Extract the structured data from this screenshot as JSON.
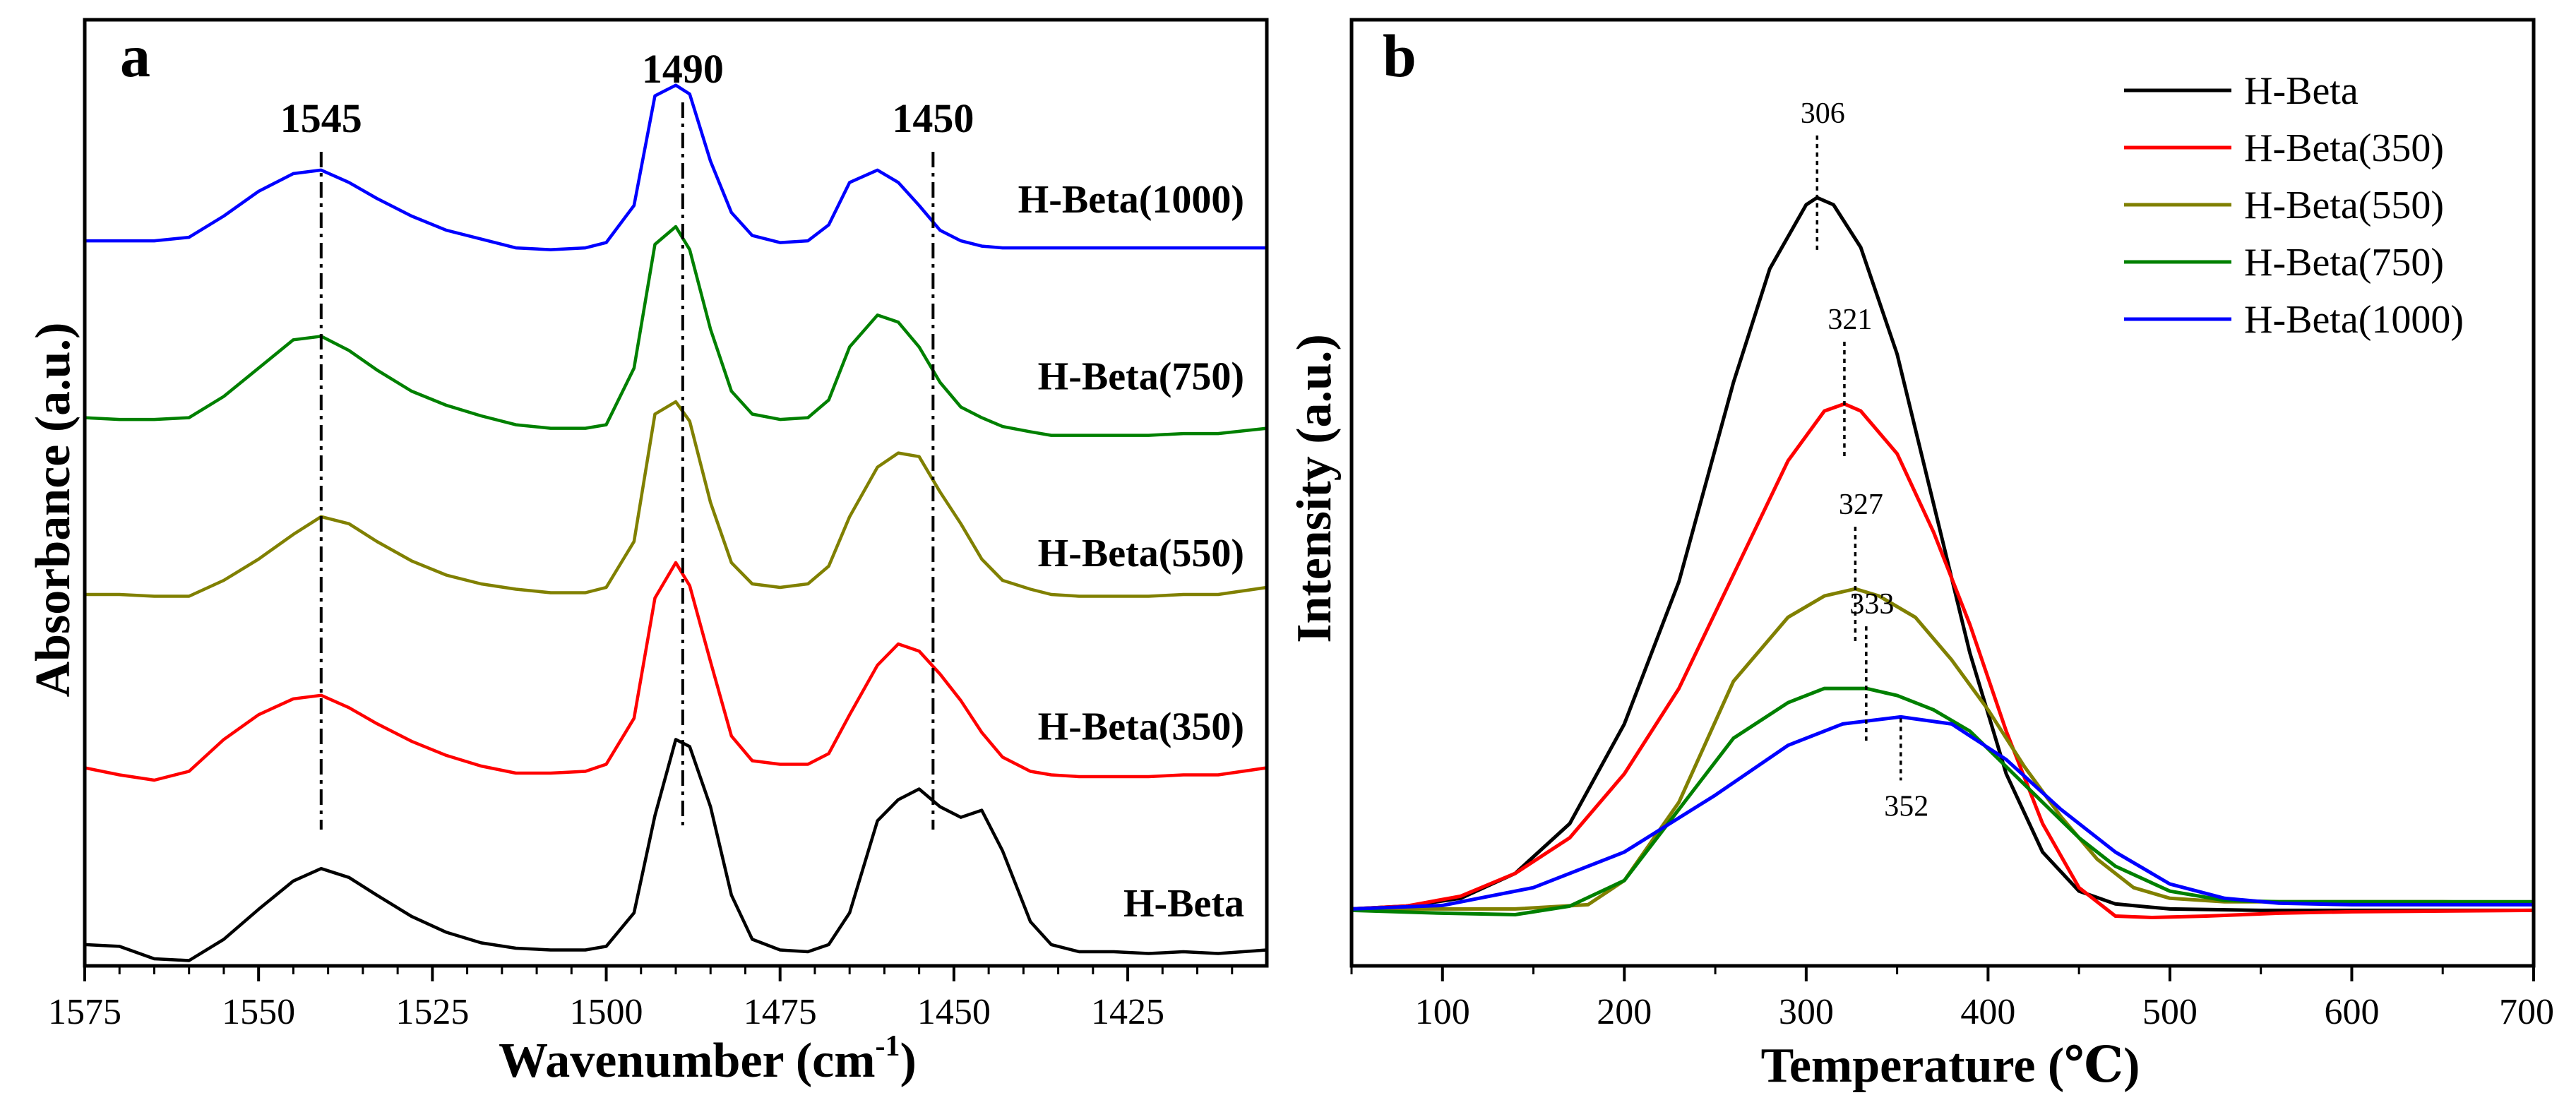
{
  "chart_data": [
    {
      "type": "line",
      "panel_label": "a",
      "title": "",
      "xlabel": "Wavenumber (cm",
      "xlabel_sup": "-1",
      "xlabel_close": ")",
      "ylabel": "Absorbance (a.u.)",
      "xlim": [
        1575,
        1405
      ],
      "x_reversed": true,
      "xticks": [
        1575,
        1550,
        1525,
        1500,
        1475,
        1450,
        1425
      ],
      "ylim": [
        0,
        5.35
      ],
      "yticks_shown": false,
      "grid": false,
      "peak_markers": [
        {
          "x": 1541,
          "label": "1545"
        },
        {
          "x": 1489,
          "label": "1490"
        },
        {
          "x": 1453,
          "label": "1450"
        }
      ],
      "series": [
        {
          "name": "H-Beta",
          "color": "#000000",
          "offset": 0.1,
          "x": [
            1575,
            1570,
            1565,
            1560,
            1555,
            1550,
            1545,
            1541,
            1537,
            1533,
            1528,
            1523,
            1518,
            1513,
            1508,
            1503,
            1500,
            1496,
            1493,
            1490,
            1488,
            1485,
            1482,
            1479,
            1475,
            1471,
            1468,
            1465,
            1461,
            1458,
            1455,
            1452,
            1449,
            1446,
            1443,
            1439,
            1436,
            1432,
            1427,
            1422,
            1417,
            1412,
            1405
          ],
          "y": [
            0.02,
            0.01,
            -0.06,
            -0.07,
            0.05,
            0.22,
            0.38,
            0.45,
            0.4,
            0.3,
            0.18,
            0.09,
            0.03,
            0.0,
            -0.01,
            -0.01,
            0.01,
            0.2,
            0.75,
            1.18,
            1.14,
            0.8,
            0.3,
            0.05,
            -0.01,
            -0.02,
            0.02,
            0.2,
            0.72,
            0.84,
            0.9,
            0.8,
            0.74,
            0.78,
            0.55,
            0.15,
            0.02,
            -0.02,
            -0.02,
            -0.03,
            -0.02,
            -0.03,
            -0.01
          ]
        },
        {
          "name": "H-Beta(350)",
          "color": "#ff0000",
          "offset": 1.1,
          "x": [
            1575,
            1570,
            1565,
            1560,
            1555,
            1550,
            1545,
            1541,
            1537,
            1533,
            1528,
            1523,
            1518,
            1513,
            1508,
            1503,
            1500,
            1496,
            1493,
            1490,
            1488,
            1485,
            1482,
            1479,
            1475,
            1471,
            1468,
            1465,
            1461,
            1458,
            1455,
            1452,
            1449,
            1446,
            1443,
            1439,
            1436,
            1432,
            1427,
            1422,
            1417,
            1412,
            1405
          ],
          "y": [
            0.02,
            -0.02,
            -0.05,
            0.0,
            0.18,
            0.32,
            0.41,
            0.43,
            0.36,
            0.27,
            0.17,
            0.09,
            0.03,
            -0.01,
            -0.01,
            0.0,
            0.04,
            0.3,
            0.98,
            1.18,
            1.05,
            0.62,
            0.2,
            0.06,
            0.04,
            0.04,
            0.1,
            0.32,
            0.6,
            0.72,
            0.68,
            0.55,
            0.4,
            0.22,
            0.08,
            0.0,
            -0.02,
            -0.03,
            -0.03,
            -0.03,
            -0.02,
            -0.02,
            0.02
          ]
        },
        {
          "name": "H-Beta(550)",
          "color": "#808000",
          "offset": 2.1,
          "x": [
            1575,
            1570,
            1565,
            1560,
            1555,
            1550,
            1545,
            1541,
            1537,
            1533,
            1528,
            1523,
            1518,
            1513,
            1508,
            1503,
            1500,
            1496,
            1493,
            1490,
            1488,
            1485,
            1482,
            1479,
            1475,
            1471,
            1468,
            1465,
            1461,
            1458,
            1455,
            1452,
            1449,
            1446,
            1443,
            1439,
            1436,
            1432,
            1427,
            1422,
            1417,
            1412,
            1405
          ],
          "y": [
            0.0,
            0.0,
            -0.01,
            -0.01,
            0.08,
            0.2,
            0.34,
            0.44,
            0.4,
            0.3,
            0.19,
            0.11,
            0.06,
            0.03,
            0.01,
            0.01,
            0.04,
            0.3,
            1.02,
            1.09,
            0.98,
            0.52,
            0.18,
            0.06,
            0.04,
            0.06,
            0.16,
            0.44,
            0.72,
            0.8,
            0.78,
            0.58,
            0.4,
            0.2,
            0.08,
            0.03,
            0.0,
            -0.01,
            -0.01,
            -0.01,
            0.0,
            0.0,
            0.04
          ]
        },
        {
          "name": "H-Beta(750)",
          "color": "#008000",
          "offset": 3.1,
          "x": [
            1575,
            1570,
            1565,
            1560,
            1555,
            1550,
            1545,
            1541,
            1537,
            1533,
            1528,
            1523,
            1518,
            1513,
            1508,
            1503,
            1500,
            1496,
            1493,
            1490,
            1488,
            1485,
            1482,
            1479,
            1475,
            1471,
            1468,
            1465,
            1461,
            1458,
            1455,
            1452,
            1449,
            1446,
            1443,
            1439,
            1436,
            1432,
            1427,
            1422,
            1417,
            1412,
            1405
          ],
          "y": [
            0.0,
            -0.01,
            -0.01,
            0.0,
            0.12,
            0.28,
            0.44,
            0.46,
            0.38,
            0.27,
            0.15,
            0.07,
            0.01,
            -0.04,
            -0.06,
            -0.06,
            -0.04,
            0.28,
            0.98,
            1.08,
            0.95,
            0.5,
            0.15,
            0.02,
            -0.01,
            0.0,
            0.1,
            0.4,
            0.58,
            0.54,
            0.4,
            0.2,
            0.06,
            0.0,
            -0.05,
            -0.08,
            -0.1,
            -0.1,
            -0.1,
            -0.1,
            -0.09,
            -0.09,
            -0.06
          ]
        },
        {
          "name": "H-Beta(1000)",
          "color": "#0000ff",
          "offset": 4.1,
          "x": [
            1575,
            1570,
            1565,
            1560,
            1555,
            1550,
            1545,
            1541,
            1537,
            1533,
            1528,
            1523,
            1518,
            1513,
            1508,
            1503,
            1500,
            1496,
            1493,
            1490,
            1488,
            1485,
            1482,
            1479,
            1475,
            1471,
            1468,
            1465,
            1461,
            1458,
            1455,
            1452,
            1449,
            1446,
            1443,
            1439,
            1436,
            1432,
            1427,
            1422,
            1417,
            1412,
            1405
          ],
          "y": [
            0.0,
            0.0,
            0.0,
            0.02,
            0.14,
            0.28,
            0.38,
            0.4,
            0.33,
            0.24,
            0.14,
            0.06,
            0.01,
            -0.04,
            -0.05,
            -0.04,
            -0.01,
            0.2,
            0.82,
            0.88,
            0.83,
            0.45,
            0.16,
            0.03,
            -0.01,
            0.0,
            0.09,
            0.33,
            0.4,
            0.33,
            0.2,
            0.06,
            0.0,
            -0.03,
            -0.04,
            -0.04,
            -0.04,
            -0.04,
            -0.04,
            -0.04,
            -0.04,
            -0.04,
            -0.04
          ]
        }
      ]
    },
    {
      "type": "line",
      "panel_label": "b",
      "title": "",
      "xlabel": "Temperature (℃)",
      "ylabel": "Intensity (a.u.)",
      "xlim": [
        50,
        700
      ],
      "xticks": [
        100,
        200,
        300,
        400,
        500,
        600,
        700
      ],
      "ylim": [
        -0.08,
        1.25
      ],
      "yticks_shown": false,
      "grid": false,
      "legend_position": "top-right",
      "peak_annotations": [
        {
          "series": "H-Beta",
          "x": 306,
          "label": "306"
        },
        {
          "series": "H-Beta(350)",
          "x": 321,
          "label": "321"
        },
        {
          "series": "H-Beta(550)",
          "x": 327,
          "label": "327"
        },
        {
          "series": "H-Beta(750)",
          "x": 333,
          "label": "333"
        },
        {
          "series": "H-Beta(1000)",
          "x": 352,
          "label": "352"
        }
      ],
      "series": [
        {
          "name": "H-Beta",
          "color": "#000000",
          "x": [
            50,
            80,
            110,
            140,
            170,
            200,
            230,
            260,
            280,
            300,
            306,
            315,
            330,
            350,
            370,
            390,
            410,
            430,
            450,
            470,
            500,
            550,
            600,
            650,
            700
          ],
          "y": [
            0.0,
            0.004,
            0.015,
            0.05,
            0.12,
            0.26,
            0.46,
            0.74,
            0.9,
            0.99,
            1.0,
            0.99,
            0.93,
            0.78,
            0.57,
            0.36,
            0.19,
            0.08,
            0.025,
            0.007,
            0.0,
            -0.002,
            -0.002,
            -0.002,
            -0.002
          ]
        },
        {
          "name": "H-Beta(350)",
          "color": "#ff0000",
          "x": [
            50,
            80,
            110,
            140,
            170,
            200,
            230,
            260,
            290,
            310,
            321,
            330,
            350,
            370,
            390,
            410,
            430,
            450,
            470,
            490,
            520,
            560,
            600,
            650,
            700
          ],
          "y": [
            0.0,
            0.004,
            0.018,
            0.05,
            0.1,
            0.19,
            0.31,
            0.47,
            0.63,
            0.7,
            0.71,
            0.7,
            0.64,
            0.53,
            0.4,
            0.25,
            0.12,
            0.03,
            -0.01,
            -0.012,
            -0.01,
            -0.006,
            -0.004,
            -0.003,
            -0.002
          ]
        },
        {
          "name": "H-Beta(550)",
          "color": "#808000",
          "x": [
            50,
            100,
            140,
            180,
            200,
            230,
            260,
            290,
            310,
            327,
            340,
            360,
            380,
            400,
            420,
            440,
            460,
            480,
            500,
            530,
            560,
            600,
            650,
            700
          ],
          "y": [
            0.0,
            0.0,
            0.0,
            0.006,
            0.04,
            0.15,
            0.32,
            0.41,
            0.44,
            0.45,
            0.44,
            0.41,
            0.35,
            0.28,
            0.2,
            0.13,
            0.07,
            0.03,
            0.015,
            0.01,
            0.01,
            0.01,
            0.01,
            0.008
          ]
        },
        {
          "name": "H-Beta(750)",
          "color": "#008000",
          "x": [
            50,
            100,
            140,
            170,
            200,
            230,
            260,
            290,
            310,
            333,
            350,
            370,
            390,
            410,
            430,
            450,
            470,
            500,
            530,
            560,
            600,
            650,
            700
          ],
          "y": [
            -0.002,
            -0.006,
            -0.008,
            0.004,
            0.04,
            0.14,
            0.24,
            0.29,
            0.31,
            0.31,
            0.3,
            0.28,
            0.25,
            0.2,
            0.15,
            0.1,
            0.06,
            0.025,
            0.012,
            0.01,
            0.01,
            0.01,
            0.01
          ]
        },
        {
          "name": "H-Beta(1000)",
          "color": "#0000ff",
          "x": [
            50,
            100,
            150,
            200,
            250,
            290,
            320,
            352,
            380,
            410,
            440,
            470,
            500,
            530,
            560,
            600,
            650,
            700
          ],
          "y": [
            0.0,
            0.005,
            0.03,
            0.08,
            0.16,
            0.23,
            0.26,
            0.27,
            0.26,
            0.21,
            0.14,
            0.08,
            0.035,
            0.015,
            0.008,
            0.006,
            0.006,
            0.006
          ]
        }
      ]
    }
  ]
}
